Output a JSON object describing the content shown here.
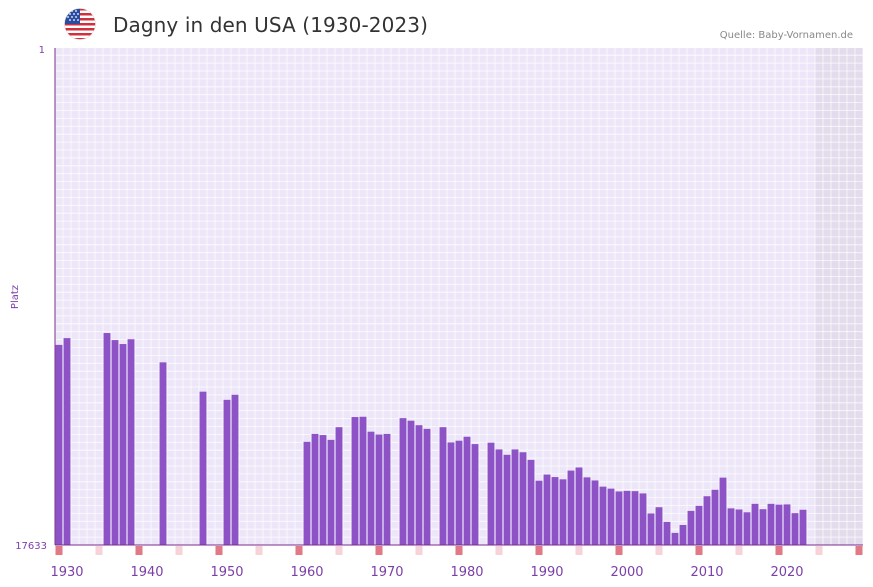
{
  "header": {
    "title": "Dagny in den USA (1930-2023)",
    "source": "Quelle: Baby-Vornamen.de",
    "flag_icon": "us-flag-icon"
  },
  "colors": {
    "bar": "#8c52c6",
    "plot_bg": "#ece6f8",
    "future_bg": "#e2dcec",
    "axis": "#7b2d8e",
    "label": "#7b3fa8",
    "marker_strong": "#e07a85",
    "marker_light": "#f6d3d8"
  },
  "chart_data": {
    "type": "bar",
    "title": "Dagny in den USA (1930-2023)",
    "ylabel": "Platz",
    "y_top_label": "1",
    "y_bottom_label": "17633",
    "ylim": [
      0,
      17633
    ],
    "note": "bar height = rank score, rank axis is inverted (1 at top, 17633 at bottom)",
    "x_range": [
      1928.5,
      2029.5
    ],
    "future_from": 2023.5,
    "x_ticks": [
      "1930",
      "1940",
      "1950",
      "1960",
      "1970",
      "1980",
      "1990",
      "2000",
      "2010",
      "2020"
    ],
    "x_tick_values": [
      1930,
      1940,
      1950,
      1960,
      1970,
      1980,
      1990,
      2000,
      2010,
      2020
    ],
    "years": [
      1929,
      1930,
      1935,
      1936,
      1937,
      1938,
      1942,
      1947,
      1950,
      1951,
      1960,
      1961,
      1962,
      1963,
      1964,
      1966,
      1967,
      1968,
      1969,
      1970,
      1972,
      1973,
      1974,
      1975,
      1977,
      1978,
      1979,
      1980,
      1981,
      1983,
      1984,
      1985,
      1986,
      1987,
      1988,
      1989,
      1990,
      1991,
      1992,
      1993,
      1994,
      1995,
      1996,
      1997,
      1998,
      1999,
      2000,
      2001,
      2002,
      2003,
      2004,
      2005,
      2006,
      2007,
      2008,
      2009,
      2010,
      2011,
      2012,
      2013,
      2014,
      2015,
      2016,
      2017,
      2018,
      2019,
      2020,
      2021,
      2022
    ],
    "values": [
      7100,
      7340,
      7520,
      7270,
      7130,
      7300,
      6480,
      5440,
      5150,
      5330,
      3660,
      3940,
      3900,
      3730,
      4180,
      4540,
      4550,
      4020,
      3920,
      3940,
      4500,
      4410,
      4250,
      4120,
      4180,
      3640,
      3700,
      3840,
      3580,
      3630,
      3390,
      3200,
      3390,
      3290,
      3020,
      2280,
      2500,
      2410,
      2330,
      2640,
      2750,
      2400,
      2290,
      2070,
      2000,
      1900,
      1920,
      1910,
      1830,
      1120,
      1340,
      820,
      430,
      710,
      1210,
      1390,
      1730,
      1960,
      2390,
      1300,
      1260,
      1160,
      1460,
      1270,
      1460,
      1430,
      1440,
      1130,
      1250
    ],
    "markers_strong": [
      1929,
      1939,
      1949,
      1959,
      1969,
      1979,
      1989,
      1999,
      2009,
      2019,
      2029
    ],
    "markers_light": [
      1934,
      1944,
      1954,
      1964,
      1974,
      1984,
      1994,
      2004,
      2014,
      2024
    ]
  }
}
